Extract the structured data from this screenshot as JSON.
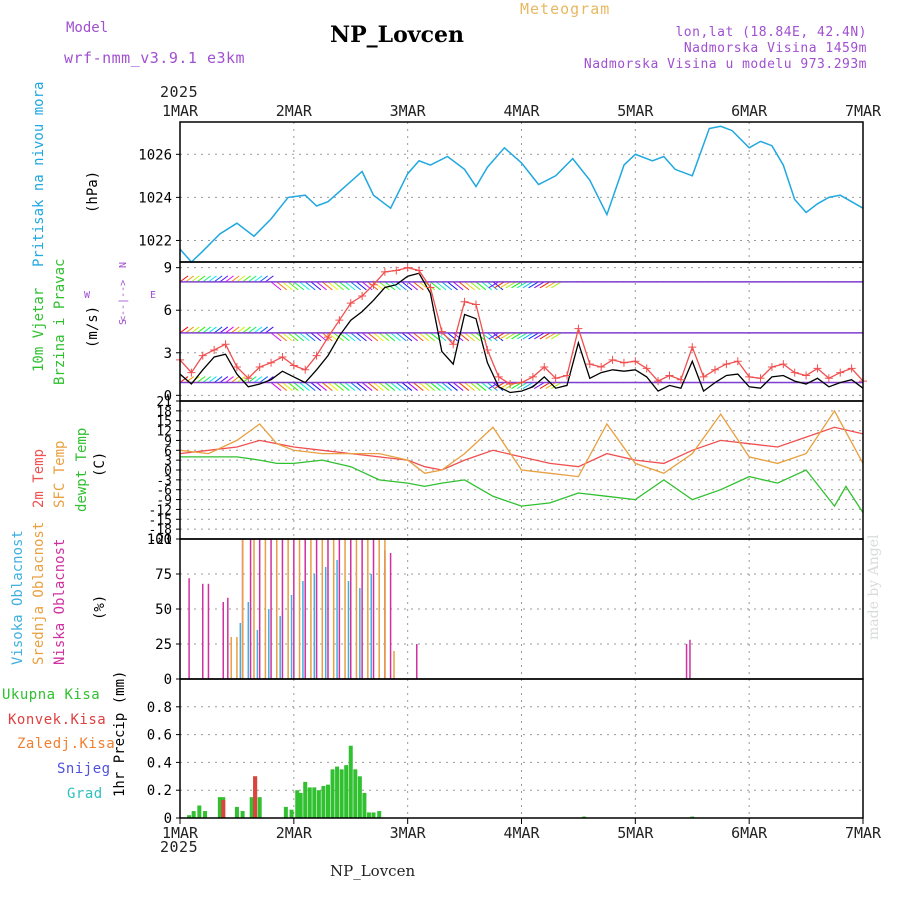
{
  "header": {
    "model_label": "Model",
    "model_name": "wrf-nmm_v3.9.1 e3km",
    "station": "NP_Lovcen",
    "product": "Meteogram",
    "coords": "lon,lat (18.84E, 42.4N)",
    "elevation": "Nadmorska Visina 1459m",
    "model_elevation": "Nadmorska Visina u modelu 973.293m"
  },
  "year_top": "2025",
  "year_bottom": "2025",
  "footer_station": "NP_Lovcen",
  "credit": "made by Angel",
  "colors": {
    "pressure": "#20a8e0",
    "t2m": "#f05050",
    "tsfc": "#e8a040",
    "dewpt": "#30c030",
    "wind_obs": "#000000",
    "gust": "#f05050",
    "high_cloud": "#40b0e0",
    "mid_cloud": "#e8a040",
    "low_cloud": "#d030a0",
    "precip_total": "#30c030",
    "precip_conv": "#e04040",
    "precip_frozen": "#f08030",
    "snow": "#5050e0",
    "hail": "#30c0c0",
    "purple": "#a050d0"
  },
  "x_axis": {
    "labels": [
      "1MAR",
      "2MAR",
      "3MAR",
      "4MAR",
      "5MAR",
      "6MAR",
      "7MAR"
    ],
    "days": [
      0,
      1,
      2,
      3,
      4,
      5,
      6
    ]
  },
  "panels": {
    "pressure": {
      "label": "Pritisak na nivou mora",
      "unit": "(hPa)"
    },
    "wind": {
      "label1": "10m Vjetar",
      "label2": "Brzina i Pravac",
      "unit": "(m/s)",
      "compass_w": "W",
      "compass_e": "E",
      "compass_n": "N",
      "compass_s": "S",
      "compass_arrow": "<--|-->"
    },
    "temp": {
      "label1": "2m Temp",
      "label2": "SFC Temp",
      "label3": "dewpt Temp",
      "unit": "(C)"
    },
    "cloud": {
      "label1": "Visoka Oblacnost",
      "label2": "Srednja Oblacnost",
      "label3": "Niska Oblacnost",
      "unit": "(%)"
    },
    "precip": {
      "legend": [
        "Ukupna Kisa",
        "Konvek.Kisa",
        "Zaledj.Kisa",
        "Snijeg",
        "Grad"
      ],
      "unit": "1hr Precip (mm)"
    }
  },
  "chart_data": [
    {
      "type": "line",
      "title": "Pritisak na nivou mora",
      "ylabel": "hPa",
      "ylim": [
        1021,
        1027.5
      ],
      "yticks": [
        1022,
        1024,
        1026
      ],
      "x": [
        0,
        0.1,
        0.2,
        0.35,
        0.5,
        0.65,
        0.8,
        0.95,
        1.1,
        1.2,
        1.3,
        1.45,
        1.6,
        1.7,
        1.85,
        2.0,
        2.1,
        2.2,
        2.35,
        2.5,
        2.6,
        2.7,
        2.85,
        3.0,
        3.15,
        3.3,
        3.45,
        3.6,
        3.75,
        3.9,
        4.0,
        4.15,
        4.25,
        4.35,
        4.5,
        4.65,
        4.75,
        4.85,
        5.0,
        5.1,
        5.2,
        5.3,
        5.4,
        5.5,
        5.6,
        5.7,
        5.8,
        5.9,
        6.0
      ],
      "values": [
        1021.6,
        1021.0,
        1021.5,
        1022.3,
        1022.8,
        1022.2,
        1023.0,
        1024.0,
        1024.1,
        1023.6,
        1023.8,
        1024.5,
        1025.2,
        1024.1,
        1023.5,
        1025.1,
        1025.7,
        1025.5,
        1025.9,
        1025.3,
        1024.5,
        1025.4,
        1026.3,
        1025.6,
        1024.6,
        1025.0,
        1025.8,
        1024.8,
        1023.2,
        1025.5,
        1026.0,
        1025.7,
        1025.9,
        1025.3,
        1025.0,
        1027.2,
        1027.3,
        1027.1,
        1026.3,
        1026.6,
        1026.4,
        1025.5,
        1023.9,
        1023.3,
        1023.7,
        1024.0,
        1024.1,
        1023.8,
        1023.5
      ]
    },
    {
      "type": "line",
      "title": "10m Vjetar Brzina i Pravac",
      "ylabel": "m/s",
      "ylim": [
        -0.4,
        9.4
      ],
      "yticks": [
        0,
        3,
        6,
        9
      ],
      "series": [
        {
          "name": "wind speed",
          "x": [
            0,
            0.1,
            0.2,
            0.3,
            0.4,
            0.5,
            0.6,
            0.7,
            0.8,
            0.9,
            1.0,
            1.1,
            1.2,
            1.3,
            1.4,
            1.5,
            1.6,
            1.7,
            1.8,
            1.9,
            2.0,
            2.1,
            2.2,
            2.3,
            2.4,
            2.5,
            2.6,
            2.7,
            2.8,
            2.9,
            3.0,
            3.1,
            3.2,
            3.3,
            3.4,
            3.5,
            3.6,
            3.7,
            3.8,
            3.9,
            4.0,
            4.1,
            4.2,
            4.3,
            4.4,
            4.5,
            4.6,
            4.7,
            4.8,
            4.9,
            5.0,
            5.1,
            5.2,
            5.3,
            5.4,
            5.5,
            5.6,
            5.7,
            5.8,
            5.9,
            6.0
          ],
          "values": [
            1.5,
            0.8,
            1.8,
            2.7,
            2.9,
            1.5,
            0.6,
            0.8,
            1.1,
            1.7,
            1.3,
            0.9,
            1.8,
            2.8,
            4.2,
            5.3,
            5.9,
            6.7,
            7.6,
            7.8,
            8.4,
            8.6,
            7.2,
            3.1,
            2.2,
            5.7,
            5.4,
            2.3,
            0.6,
            0.2,
            0.3,
            0.6,
            1.3,
            0.5,
            0.7,
            3.7,
            1.2,
            1.6,
            1.8,
            1.7,
            1.8,
            1.3,
            0.3,
            0.7,
            0.5,
            2.4,
            0.3,
            0.9,
            1.4,
            1.5,
            0.6,
            0.5,
            1.3,
            1.4,
            1.0,
            0.8,
            1.2,
            0.6,
            0.9,
            1.1,
            0.5
          ]
        },
        {
          "name": "gust",
          "x": [
            0,
            0.1,
            0.2,
            0.3,
            0.4,
            0.5,
            0.6,
            0.7,
            0.8,
            0.9,
            1.0,
            1.1,
            1.2,
            1.3,
            1.4,
            1.5,
            1.6,
            1.7,
            1.8,
            1.9,
            2.0,
            2.1,
            2.2,
            2.3,
            2.4,
            2.5,
            2.6,
            2.7,
            2.8,
            2.9,
            3.0,
            3.1,
            3.2,
            3.3,
            3.4,
            3.5,
            3.6,
            3.7,
            3.8,
            3.9,
            4.0,
            4.1,
            4.2,
            4.3,
            4.4,
            4.5,
            4.6,
            4.7,
            4.8,
            4.9,
            5.0,
            5.1,
            5.2,
            5.3,
            5.4,
            5.5,
            5.6,
            5.7,
            5.8,
            5.9,
            6.0
          ],
          "values": [
            2.5,
            1.6,
            2.8,
            3.2,
            3.6,
            2.0,
            1.2,
            2.0,
            2.3,
            2.7,
            2.1,
            1.8,
            2.8,
            4.1,
            5.3,
            6.5,
            7.0,
            7.8,
            8.7,
            8.8,
            9.0,
            8.8,
            7.6,
            4.5,
            3.6,
            6.6,
            6.4,
            3.2,
            1.3,
            0.8,
            0.9,
            1.3,
            2.0,
            1.2,
            1.4,
            4.7,
            2.2,
            2.0,
            2.5,
            2.3,
            2.4,
            1.9,
            1.0,
            1.4,
            1.1,
            3.4,
            1.3,
            1.8,
            2.2,
            2.4,
            1.3,
            1.2,
            2.0,
            2.2,
            1.6,
            1.4,
            1.9,
            1.2,
            1.6,
            1.9,
            1.0
          ]
        }
      ]
    },
    {
      "type": "line",
      "title": "Temperatura",
      "ylabel": "C",
      "ylim": [
        -21,
        21
      ],
      "yticks": [
        21,
        18,
        15,
        12,
        9,
        6,
        3,
        0,
        -3,
        -6,
        -9,
        -12,
        -15,
        -18,
        -21
      ],
      "series": [
        {
          "name": "2m Temp",
          "x": [
            0,
            0.25,
            0.5,
            0.7,
            0.85,
            1.0,
            1.25,
            1.5,
            1.75,
            2.0,
            2.15,
            2.3,
            2.5,
            2.75,
            3.0,
            3.25,
            3.5,
            3.75,
            4.0,
            4.25,
            4.5,
            4.75,
            5.0,
            5.25,
            5.5,
            5.75,
            6.0
          ],
          "values": [
            5,
            6,
            7,
            9,
            8,
            7,
            6,
            5,
            4,
            3,
            1,
            0,
            3,
            6,
            4,
            2,
            1,
            5,
            3,
            2,
            6,
            9,
            8,
            7,
            10,
            13,
            11
          ]
        },
        {
          "name": "SFC Temp",
          "x": [
            0,
            0.25,
            0.5,
            0.7,
            0.85,
            1.0,
            1.25,
            1.5,
            1.75,
            2.0,
            2.15,
            2.3,
            2.5,
            2.75,
            3.0,
            3.25,
            3.5,
            3.75,
            4.0,
            4.25,
            4.5,
            4.75,
            5.0,
            5.25,
            5.5,
            5.75,
            6.0
          ],
          "values": [
            6,
            5,
            9,
            14,
            8,
            6,
            5,
            5,
            5,
            3,
            -1,
            0,
            5,
            13,
            0,
            -1,
            -2,
            14,
            2,
            -1,
            5,
            17,
            4,
            2,
            5,
            18,
            2
          ]
        },
        {
          "name": "dewpt Temp",
          "x": [
            0,
            0.25,
            0.5,
            0.7,
            0.85,
            1.0,
            1.25,
            1.5,
            1.75,
            2.0,
            2.15,
            2.3,
            2.5,
            2.75,
            3.0,
            3.25,
            3.5,
            3.75,
            4.0,
            4.25,
            4.5,
            4.75,
            5.0,
            5.25,
            5.5,
            5.75,
            5.85,
            6.0
          ],
          "values": [
            4,
            4,
            4,
            3,
            2,
            2,
            3,
            1,
            -3,
            -4,
            -5,
            -4,
            -3,
            -8,
            -11,
            -10,
            -7,
            -8,
            -9,
            -3,
            -9,
            -6,
            -2,
            -4,
            0,
            -11,
            -5,
            -13
          ]
        }
      ]
    },
    {
      "type": "bar",
      "title": "Oblacnost",
      "ylabel": "%",
      "ylim": [
        0,
        100
      ],
      "yticks": [
        0,
        25,
        50,
        75,
        100
      ],
      "series": [
        {
          "name": "Niska Oblacnost",
          "x": [
            0.08,
            0.2,
            0.25,
            0.38,
            0.42,
            0.55,
            0.62,
            0.7,
            0.8,
            0.9,
            1.0,
            1.1,
            1.2,
            1.3,
            1.4,
            1.5,
            1.6,
            1.7,
            1.8,
            1.85,
            2.08,
            4.45,
            4.48
          ],
          "values": [
            72,
            68,
            68,
            55,
            58,
            100,
            100,
            100,
            100,
            100,
            100,
            100,
            100,
            100,
            100,
            100,
            100,
            100,
            92,
            90,
            25,
            25,
            28
          ]
        },
        {
          "name": "Srednja Oblacnost",
          "x": [
            0.45,
            0.5,
            0.55,
            0.65,
            0.75,
            0.85,
            0.95,
            1.05,
            1.15,
            1.25,
            1.35,
            1.45,
            1.55,
            1.65,
            1.75,
            1.8,
            1.88
          ],
          "values": [
            30,
            30,
            100,
            100,
            100,
            100,
            100,
            100,
            100,
            100,
            100,
            100,
            100,
            100,
            100,
            100,
            20
          ]
        },
        {
          "name": "Visoka Oblacnost",
          "x": [
            0.53,
            0.6,
            0.68,
            0.78,
            0.88,
            0.98,
            1.08,
            1.18,
            1.28,
            1.38,
            1.48,
            1.58,
            1.68
          ],
          "values": [
            40,
            55,
            35,
            50,
            45,
            60,
            70,
            75,
            80,
            85,
            70,
            65,
            75
          ]
        }
      ]
    },
    {
      "type": "bar",
      "title": "1hr Precip",
      "ylabel": "mm",
      "ylim": [
        0,
        1.0
      ],
      "yticks": [
        0,
        0.2,
        0.4,
        0.6,
        0.8
      ],
      "series": [
        {
          "name": "Ukupna Kisa",
          "x": [
            0.08,
            0.12,
            0.17,
            0.22,
            0.35,
            0.38,
            0.5,
            0.55,
            0.63,
            0.66,
            0.7,
            0.93,
            0.98,
            1.03,
            1.06,
            1.1,
            1.14,
            1.18,
            1.22,
            1.26,
            1.3,
            1.34,
            1.38,
            1.42,
            1.46,
            1.5,
            1.54,
            1.58,
            1.62,
            1.66,
            1.7,
            1.75,
            3.55,
            4.5
          ],
          "values": [
            0.02,
            0.05,
            0.09,
            0.05,
            0.15,
            0.15,
            0.08,
            0.05,
            0.15,
            0.3,
            0.15,
            0.08,
            0.06,
            0.2,
            0.18,
            0.26,
            0.22,
            0.22,
            0.2,
            0.23,
            0.24,
            0.35,
            0.37,
            0.35,
            0.38,
            0.52,
            0.35,
            0.3,
            0.18,
            0.04,
            0.04,
            0.05,
            0.01,
            0.01
          ]
        },
        {
          "name": "Konvek.Kisa",
          "x": [
            0.38,
            0.66
          ],
          "values": [
            0.13,
            0.3
          ]
        }
      ]
    }
  ]
}
